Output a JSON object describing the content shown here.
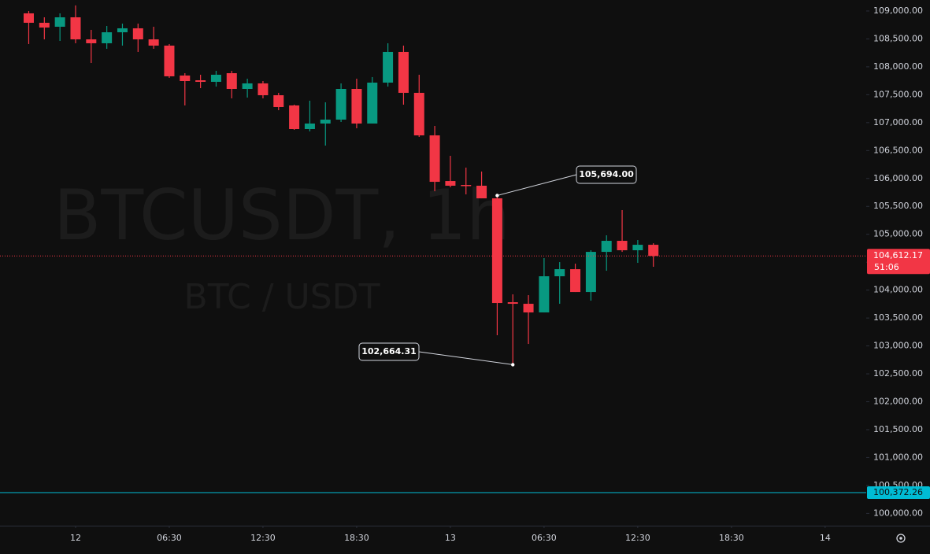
{
  "chart_data": {
    "type": "candlestick",
    "watermark": "BTCUSDT, 1h",
    "watermark_sub": "BTC / USDT",
    "x": [
      -3,
      -2,
      -1,
      0,
      1,
      2,
      3,
      4,
      5,
      6,
      7,
      8,
      9,
      10,
      11,
      12,
      13,
      14,
      15,
      16,
      17,
      18,
      19,
      20,
      21,
      22,
      23,
      24,
      25,
      26,
      27,
      28,
      29,
      30,
      31,
      32,
      33,
      34,
      35,
      36,
      37
    ],
    "open": [
      108958,
      108789,
      108718,
      108887,
      108492,
      108422,
      108619,
      108690,
      108492,
      108380,
      107844,
      107759,
      107731,
      107886,
      107604,
      107703,
      107491,
      107308,
      106885,
      106984,
      107054,
      107604,
      106984,
      107717,
      108267,
      107534,
      106772,
      105954,
      105884,
      105870,
      105644,
      103783,
      103755,
      103600,
      104248,
      104375,
      103966,
      104685,
      104883,
      104714,
      104812
    ],
    "high": [
      109000,
      108887,
      108958,
      109100,
      108662,
      108732,
      108774,
      108774,
      108718,
      108408,
      107886,
      107858,
      107928,
      107928,
      107787,
      107745,
      107534,
      107322,
      107393,
      107364,
      107703,
      107787,
      107816,
      108422,
      108380,
      107858,
      106941,
      106406,
      106194,
      106124,
      105694,
      103924,
      103910,
      104573,
      104502,
      104474,
      104714,
      104982,
      105433,
      104897,
      104840
    ],
    "low": [
      108408,
      108492,
      108464,
      108422,
      108069,
      108323,
      108380,
      108267,
      108323,
      107802,
      107308,
      107618,
      107646,
      107435,
      107449,
      107435,
      107223,
      106871,
      106843,
      106589,
      107012,
      106899,
      106984,
      107646,
      107322,
      106744,
      105771,
      105842,
      105715,
      105644,
      103191,
      102664.31,
      103036,
      103600,
      103755,
      103966,
      103811,
      104347,
      104685,
      104488,
      104418
    ],
    "close": [
      108789,
      108704,
      108887,
      108492,
      108422,
      108619,
      108690,
      108492,
      108380,
      107830,
      107745,
      107731,
      107858,
      107604,
      107703,
      107491,
      107280,
      106885,
      106984,
      107054,
      107604,
      106984,
      107717,
      108267,
      107534,
      106772,
      105940,
      105870,
      105870,
      105644,
      103769,
      103755,
      103600,
      104248,
      104375,
      103966,
      104685,
      104883,
      104714,
      104812,
      104612.17
    ],
    "up_color": "#089981",
    "down_color": "#f23645",
    "xlim": [
      -4.84,
      50.63
    ],
    "xticks": [
      {
        "value": 0,
        "label": "12"
      },
      {
        "value": 6,
        "label": "06:30"
      },
      {
        "value": 12,
        "label": "12:30"
      },
      {
        "value": 18,
        "label": "18:30"
      },
      {
        "value": 24,
        "label": "13"
      },
      {
        "value": 30,
        "label": "06:30"
      },
      {
        "value": 36,
        "label": "12:30"
      },
      {
        "value": 42,
        "label": "18:30"
      },
      {
        "value": 48,
        "label": "14"
      }
    ],
    "ylim": [
      99780,
      109197
    ],
    "yticks": [
      {
        "value": 100000,
        "label": "100,000.00"
      },
      {
        "value": 100500,
        "label": "100,500.00"
      },
      {
        "value": 101000,
        "label": "101,000.00"
      },
      {
        "value": 101500,
        "label": "101,500.00"
      },
      {
        "value": 102000,
        "label": "102,000.00"
      },
      {
        "value": 102500,
        "label": "102,500.00"
      },
      {
        "value": 103000,
        "label": "103,000.00"
      },
      {
        "value": 103500,
        "label": "103,500.00"
      },
      {
        "value": 104000,
        "label": "104,000.00"
      },
      {
        "value": 104500,
        "label": "104,500.00"
      },
      {
        "value": 105000,
        "label": "105,000.00"
      },
      {
        "value": 105500,
        "label": "105,500.00"
      },
      {
        "value": 106000,
        "label": "106,000.00"
      },
      {
        "value": 106500,
        "label": "106,500.00"
      },
      {
        "value": 107000,
        "label": "107,000.00"
      },
      {
        "value": 107500,
        "label": "107,500.00"
      },
      {
        "value": 108000,
        "label": "108,000.00"
      },
      {
        "value": 108500,
        "label": "108,500.00"
      },
      {
        "value": 109000,
        "label": "109,000.00"
      }
    ],
    "annotations": [
      {
        "x": 27,
        "value": 105694,
        "label": "105,694.00"
      },
      {
        "x": 28,
        "value": 102664.31,
        "label": "102,664.31"
      }
    ],
    "last_price": {
      "value": 104612.17,
      "label": "104,612.17"
    },
    "countdown": "51:06",
    "alert_line": {
      "value": 100372.26,
      "label": "100,372.26",
      "color": "#00bcd4"
    }
  }
}
